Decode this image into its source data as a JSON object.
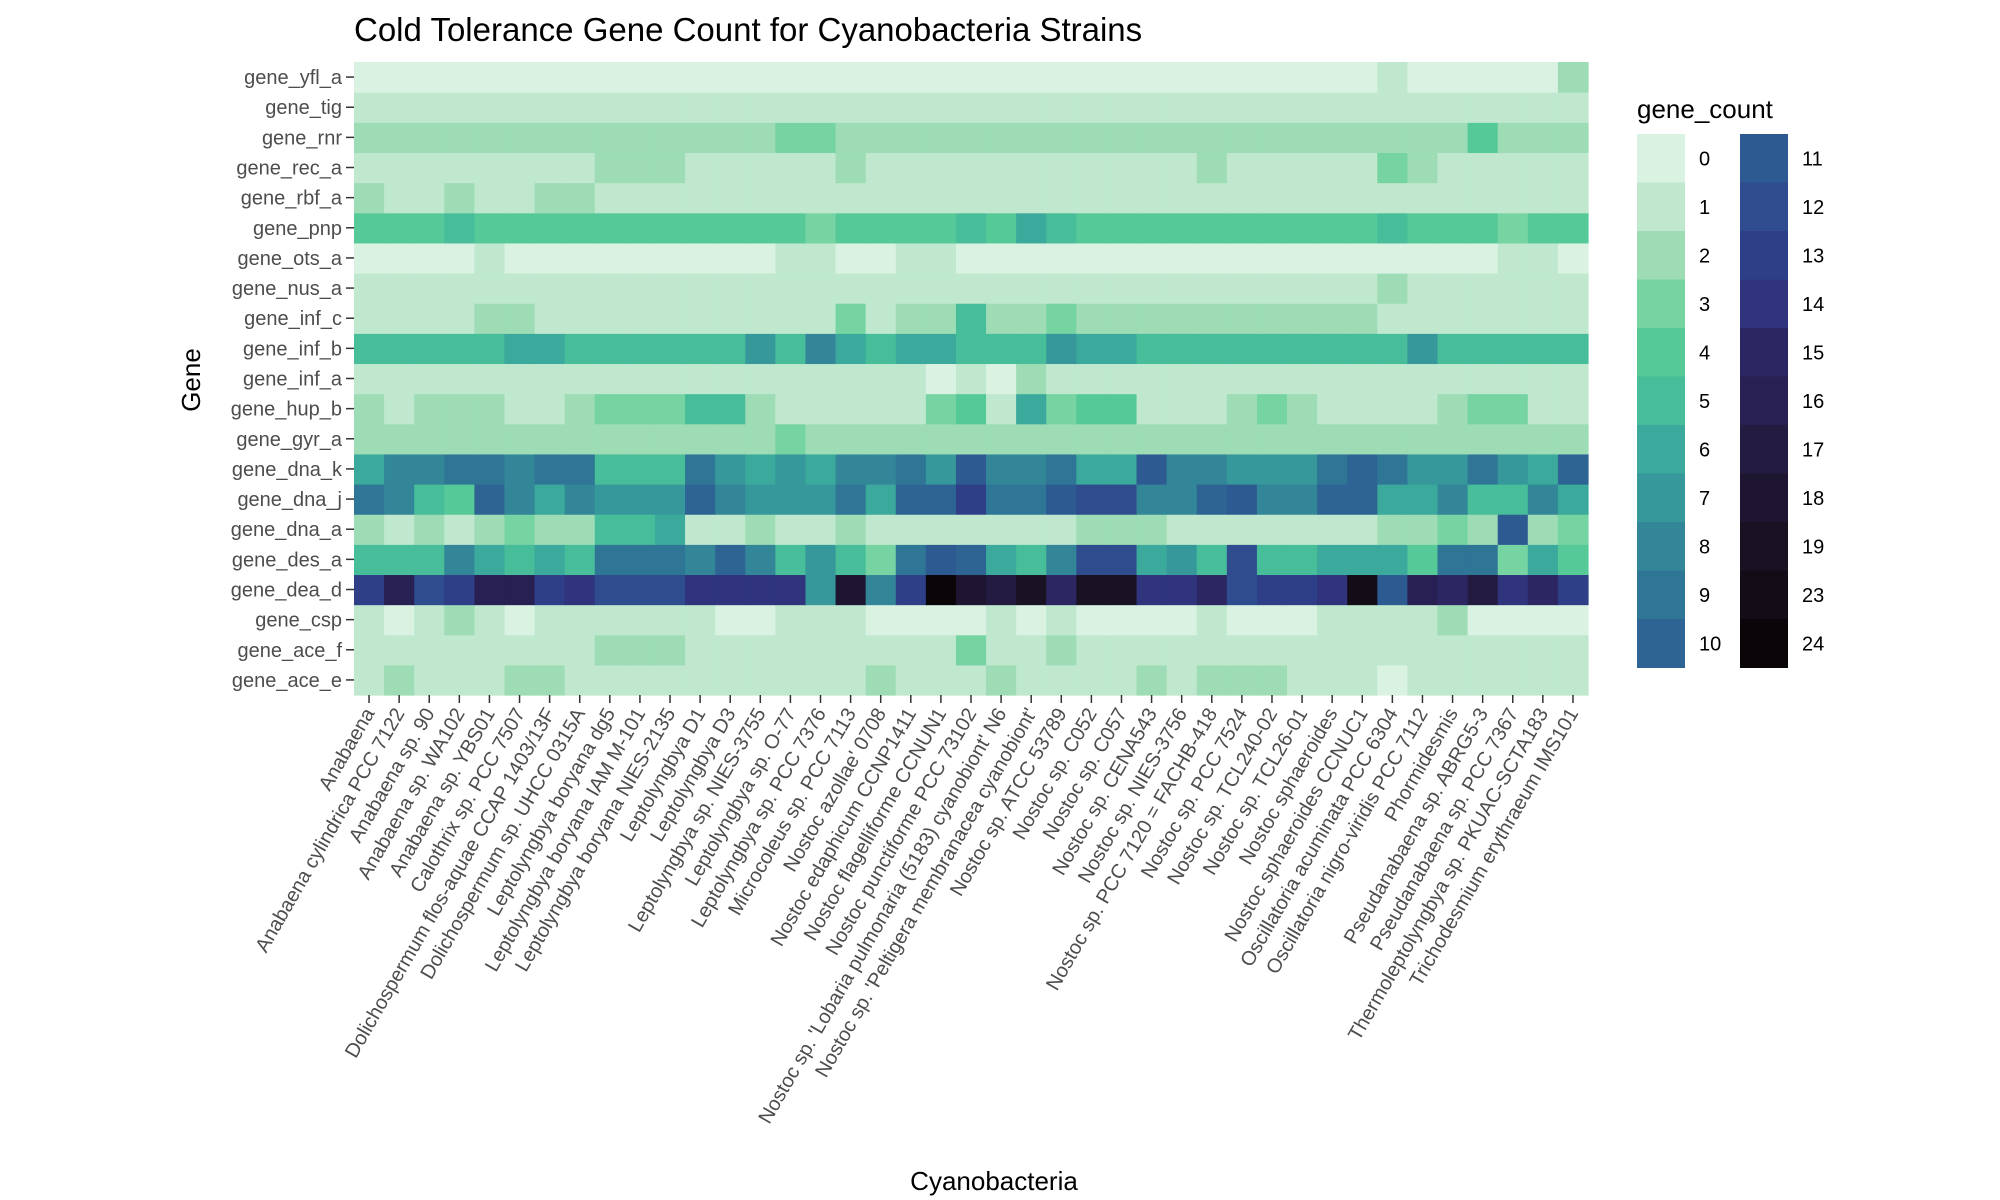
{
  "chart_data": {
    "type": "heatmap",
    "title": "Cold Tolerance Gene Count for Cyanobacteria Strains",
    "xlabel": "Cyanobacteria",
    "ylabel": "Gene",
    "grid": true,
    "legend_position": "right",
    "legend_title": "gene_count",
    "x_categories": [
      "Anabaena",
      "Anabaena cylindrica PCC 7122",
      "Anabaena sp. 90",
      "Anabaena sp. WA102",
      "Anabaena sp. YBS01",
      "Calothrix sp. PCC 7507",
      "Dolichospermum flos-aquae CCAP 1403/13F",
      "Dolichospermum sp. UHCC 0315A",
      "Leptolyngbya boryana dg5",
      "Leptolyngbya boryana IAM M-101",
      "Leptolyngbya boryana NIES-2135",
      "Leptolyngbya D1",
      "Leptolyngbya D3",
      "Leptolyngbya sp. NIES-3755",
      "Leptolyngbya sp. O-77",
      "Leptolyngbya sp. PCC 7376",
      "Microcoleus sp. PCC 7113",
      "Nostoc azollae' 0708",
      "Nostoc edaphicum CCNP1411",
      "Nostoc flagelliforme CCNUN1",
      "Nostoc punctiforme PCC 73102",
      "Nostoc sp. 'Lobaria pulmonaria (5183) cyanobiont' N6",
      "Nostoc sp. 'Peltigera membranacea cyanobiont'",
      "Nostoc sp. ATCC 53789",
      "Nostoc sp. C052",
      "Nostoc sp. C057",
      "Nostoc sp. CENA543",
      "Nostoc sp. NIES-3756",
      "Nostoc sp. PCC 7120 = FACHB-418",
      "Nostoc sp. PCC 7524",
      "Nostoc sp. TCL240-02",
      "Nostoc sp. TCL26-01",
      "Nostoc sphaeroides",
      "Nostoc sphaeroides CCNUC1",
      "Oscillatoria acuminata PCC 6304",
      "Oscillatoria nigro-viridis PCC 7112",
      "Phormidesmis",
      "Pseudanabaena sp. ABRG5-3",
      "Pseudanabaena sp. PCC 7367",
      "Thermoleptolyngbya sp. PKUAC-SCTA183",
      "Trichodesmium erythraeum IMS101"
    ],
    "y_categories": [
      "gene_ace_e",
      "gene_ace_f",
      "gene_csp",
      "gene_dea_d",
      "gene_des_a",
      "gene_dna_a",
      "gene_dna_j",
      "gene_dna_k",
      "gene_gyr_a",
      "gene_hup_b",
      "gene_inf_a",
      "gene_inf_b",
      "gene_inf_c",
      "gene_nus_a",
      "gene_ots_a",
      "gene_pnp",
      "gene_rbf_a",
      "gene_rec_a",
      "gene_rnr",
      "gene_tig",
      "gene_yfl_a"
    ],
    "legend_values": [
      0,
      1,
      2,
      3,
      4,
      5,
      6,
      7,
      8,
      9,
      10,
      11,
      12,
      13,
      14,
      15,
      16,
      17,
      18,
      19,
      23,
      24
    ],
    "legend_colors": [
      "#d9f2e2",
      "#bfe8cf",
      "#9ddcb5",
      "#76d3a2",
      "#55c997",
      "#47bd9a",
      "#3ba99b",
      "#36989b",
      "#338698",
      "#2f7596",
      "#2d6494",
      "#2d5a91",
      "#2e4c8e",
      "#2e3f88",
      "#2f347c",
      "#2c2762",
      "#281f52",
      "#231b40",
      "#1e1630",
      "#191222",
      "#130c17",
      "#0a0508"
    ],
    "z": [
      [
        1,
        2,
        1,
        1,
        1,
        2,
        2,
        1,
        1,
        1,
        1,
        1,
        1,
        1,
        1,
        1,
        1,
        2,
        1,
        1,
        1,
        2,
        1,
        1,
        1,
        1,
        2,
        1,
        2,
        2,
        2,
        1,
        1,
        1,
        0,
        1,
        1,
        1,
        1,
        1,
        1
      ],
      [
        1,
        1,
        1,
        1,
        1,
        1,
        1,
        1,
        2,
        2,
        2,
        1,
        1,
        1,
        1,
        1,
        1,
        1,
        1,
        1,
        3,
        1,
        1,
        2,
        1,
        1,
        1,
        1,
        1,
        1,
        1,
        1,
        1,
        1,
        1,
        1,
        1,
        1,
        1,
        1,
        1
      ],
      [
        1,
        0,
        1,
        2,
        1,
        0,
        1,
        1,
        1,
        1,
        1,
        1,
        0,
        0,
        1,
        1,
        1,
        0,
        0,
        0,
        0,
        1,
        0,
        1,
        0,
        0,
        0,
        0,
        1,
        0,
        0,
        0,
        1,
        1,
        1,
        1,
        2,
        0,
        0,
        0,
        0
      ],
      [
        13,
        16,
        12,
        13,
        16,
        16,
        13,
        14,
        12,
        12,
        12,
        14,
        14,
        14,
        14,
        7,
        18,
        8,
        13,
        24,
        18,
        17,
        19,
        15,
        19,
        19,
        14,
        14,
        15,
        12,
        13,
        13,
        14,
        23,
        11,
        16,
        15,
        17,
        14,
        15,
        13
      ],
      [
        5,
        5,
        5,
        8,
        6,
        5,
        6,
        5,
        9,
        9,
        9,
        8,
        10,
        8,
        5,
        7,
        5,
        3,
        9,
        11,
        10,
        6,
        5,
        8,
        12,
        12,
        6,
        7,
        5,
        12,
        5,
        5,
        6,
        6,
        6,
        4,
        9,
        9,
        3,
        6,
        4
      ],
      [
        2,
        1,
        2,
        1,
        2,
        3,
        2,
        2,
        5,
        5,
        6,
        1,
        1,
        2,
        1,
        1,
        2,
        1,
        1,
        1,
        1,
        1,
        1,
        1,
        2,
        2,
        2,
        1,
        1,
        1,
        1,
        1,
        1,
        1,
        2,
        2,
        3,
        2,
        11,
        2,
        3
      ],
      [
        9,
        8,
        5,
        4,
        10,
        8,
        6,
        8,
        7,
        7,
        7,
        10,
        8,
        7,
        7,
        7,
        9,
        6,
        10,
        10,
        13,
        9,
        9,
        11,
        12,
        12,
        8,
        8,
        10,
        11,
        8,
        8,
        10,
        10,
        6,
        6,
        8,
        5,
        5,
        8,
        6
      ],
      [
        6,
        8,
        8,
        9,
        9,
        8,
        9,
        9,
        5,
        5,
        5,
        9,
        7,
        6,
        7,
        6,
        8,
        8,
        9,
        7,
        11,
        8,
        8,
        9,
        6,
        6,
        11,
        8,
        8,
        7,
        7,
        7,
        9,
        10,
        9,
        7,
        7,
        9,
        7,
        6,
        10
      ],
      [
        2,
        2,
        2,
        2,
        2,
        2,
        2,
        2,
        2,
        2,
        2,
        2,
        2,
        2,
        3,
        2,
        2,
        2,
        2,
        2,
        2,
        2,
        2,
        2,
        2,
        2,
        2,
        2,
        2,
        2,
        2,
        2,
        2,
        2,
        2,
        2,
        2,
        2,
        2,
        2,
        2
      ],
      [
        2,
        1,
        2,
        2,
        2,
        1,
        1,
        2,
        3,
        3,
        3,
        5,
        5,
        2,
        1,
        1,
        1,
        1,
        1,
        3,
        4,
        1,
        6,
        3,
        4,
        4,
        1,
        1,
        1,
        2,
        3,
        2,
        1,
        1,
        1,
        1,
        2,
        3,
        3,
        1,
        1
      ],
      [
        1,
        1,
        1,
        1,
        1,
        1,
        1,
        1,
        1,
        1,
        1,
        1,
        1,
        1,
        1,
        1,
        1,
        1,
        1,
        0,
        1,
        0,
        2,
        1,
        1,
        1,
        1,
        1,
        1,
        1,
        1,
        1,
        1,
        1,
        1,
        1,
        1,
        1,
        1,
        1,
        1
      ],
      [
        5,
        5,
        5,
        5,
        5,
        6,
        6,
        5,
        5,
        5,
        5,
        5,
        5,
        7,
        5,
        8,
        6,
        5,
        6,
        6,
        5,
        5,
        5,
        7,
        6,
        6,
        5,
        5,
        5,
        5,
        5,
        5,
        5,
        5,
        5,
        7,
        5,
        5,
        5,
        5,
        5
      ],
      [
        1,
        1,
        1,
        1,
        2,
        2,
        1,
        1,
        1,
        1,
        1,
        1,
        1,
        1,
        1,
        1,
        3,
        1,
        2,
        2,
        5,
        2,
        2,
        3,
        2,
        2,
        2,
        2,
        2,
        2,
        2,
        2,
        2,
        2,
        1,
        1,
        1,
        1,
        1,
        1,
        1
      ],
      [
        1,
        1,
        1,
        1,
        1,
        1,
        1,
        1,
        1,
        1,
        1,
        1,
        1,
        1,
        1,
        1,
        1,
        1,
        1,
        1,
        1,
        1,
        1,
        1,
        1,
        1,
        1,
        1,
        1,
        1,
        1,
        1,
        1,
        1,
        2,
        1,
        1,
        1,
        1,
        1,
        1
      ],
      [
        0,
        0,
        0,
        0,
        1,
        0,
        0,
        0,
        0,
        0,
        0,
        0,
        0,
        0,
        1,
        1,
        0,
        0,
        1,
        1,
        0,
        0,
        0,
        0,
        0,
        0,
        0,
        0,
        0,
        0,
        0,
        0,
        0,
        0,
        0,
        0,
        0,
        0,
        1,
        1,
        0
      ],
      [
        4,
        4,
        4,
        5,
        4,
        4,
        4,
        4,
        4,
        4,
        4,
        4,
        4,
        4,
        4,
        3,
        4,
        4,
        4,
        4,
        5,
        4,
        6,
        5,
        4,
        4,
        4,
        4,
        4,
        4,
        4,
        4,
        4,
        4,
        5,
        4,
        4,
        4,
        3,
        4,
        4
      ],
      [
        2,
        1,
        1,
        2,
        1,
        1,
        2,
        2,
        1,
        1,
        1,
        1,
        1,
        1,
        1,
        1,
        1,
        1,
        1,
        1,
        1,
        1,
        1,
        1,
        1,
        1,
        1,
        1,
        1,
        1,
        1,
        1,
        1,
        1,
        1,
        1,
        1,
        1,
        1,
        1,
        1
      ],
      [
        1,
        1,
        1,
        1,
        1,
        1,
        1,
        1,
        2,
        2,
        2,
        1,
        1,
        1,
        1,
        1,
        2,
        1,
        1,
        1,
        1,
        1,
        1,
        1,
        1,
        1,
        1,
        1,
        2,
        1,
        1,
        1,
        1,
        1,
        3,
        2,
        1,
        1,
        1,
        1,
        1
      ],
      [
        2,
        2,
        2,
        2,
        2,
        2,
        2,
        2,
        2,
        2,
        2,
        2,
        2,
        2,
        3,
        3,
        2,
        2,
        2,
        2,
        2,
        2,
        2,
        2,
        2,
        2,
        2,
        2,
        2,
        2,
        2,
        2,
        2,
        2,
        2,
        2,
        2,
        4,
        2,
        2,
        2
      ],
      [
        1,
        1,
        1,
        1,
        1,
        1,
        1,
        1,
        1,
        1,
        1,
        1,
        1,
        1,
        1,
        1,
        1,
        1,
        1,
        1,
        1,
        1,
        1,
        1,
        1,
        1,
        1,
        1,
        1,
        1,
        1,
        1,
        1,
        1,
        1,
        1,
        1,
        1,
        1,
        1,
        1
      ],
      [
        0,
        0,
        0,
        0,
        0,
        0,
        0,
        0,
        0,
        0,
        0,
        0,
        0,
        0,
        0,
        0,
        0,
        0,
        0,
        0,
        0,
        0,
        0,
        0,
        0,
        0,
        0,
        0,
        0,
        0,
        0,
        0,
        0,
        0,
        1,
        0,
        0,
        0,
        0,
        0,
        2
      ]
    ]
  }
}
